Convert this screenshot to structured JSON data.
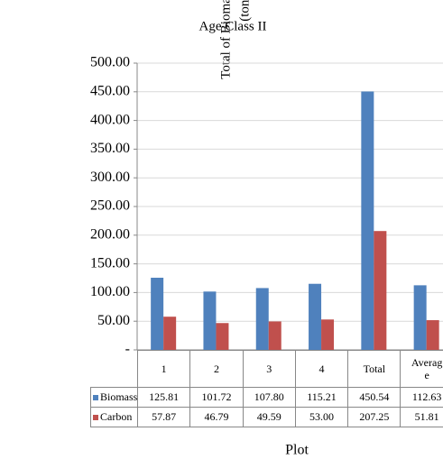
{
  "chart_data": {
    "type": "bar",
    "title": "Age Class II",
    "x_label": "Plot",
    "y_label": [
      "Total of Biomass and Carbon",
      "(ton/ha)"
    ],
    "categories": [
      "1",
      "2",
      "3",
      "4",
      "Total",
      "Average"
    ],
    "series": [
      {
        "name": "Biomass",
        "color": "#4f81bd",
        "values": [
          125.81,
          101.72,
          107.8,
          115.21,
          450.54,
          112.63
        ],
        "value_labels": [
          "125.81",
          "101.72",
          "107.80",
          "115.21",
          "450.54",
          "112.63"
        ]
      },
      {
        "name": "Carbon",
        "color": "#c0504d",
        "values": [
          57.87,
          46.79,
          49.59,
          53.0,
          207.25,
          51.81
        ],
        "value_labels": [
          "57.87",
          "46.79",
          "49.59",
          "53.00",
          "207.25",
          "51.81"
        ]
      }
    ],
    "ylim": [
      0,
      500
    ],
    "yticks": [
      {
        "value": 0,
        "label": "-"
      },
      {
        "value": 50,
        "label": "50.00"
      },
      {
        "value": 100,
        "label": "100.00"
      },
      {
        "value": 150,
        "label": "150.00"
      },
      {
        "value": 200,
        "label": "200.00"
      },
      {
        "value": 250,
        "label": "250.00"
      },
      {
        "value": 300,
        "label": "300.00"
      },
      {
        "value": 350,
        "label": "350.00"
      },
      {
        "value": 400,
        "label": "400.00"
      },
      {
        "value": 450,
        "label": "450.00"
      },
      {
        "value": 500,
        "label": "500.00"
      }
    ],
    "grid": true
  }
}
